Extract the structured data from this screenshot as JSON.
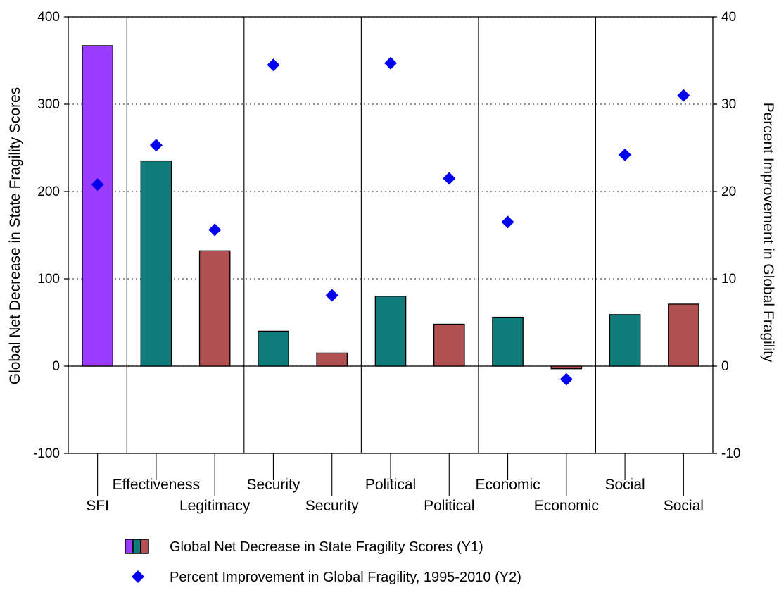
{
  "chart_data": {
    "type": "bar",
    "categories": [
      {
        "top": "",
        "bottom": "SFI"
      },
      {
        "top": "Effectiveness",
        "bottom": ""
      },
      {
        "top": "",
        "bottom": "Legitimacy"
      },
      {
        "top": "Security",
        "bottom": ""
      },
      {
        "top": "",
        "bottom": "Security"
      },
      {
        "top": "Political",
        "bottom": ""
      },
      {
        "top": "",
        "bottom": "Political"
      },
      {
        "top": "Economic",
        "bottom": ""
      },
      {
        "top": "",
        "bottom": "Economic"
      },
      {
        "top": "Social",
        "bottom": ""
      },
      {
        "top": "",
        "bottom": "Social"
      }
    ],
    "series": [
      {
        "name": "Global Net Decrease in State Fragility Scores (Y1)",
        "axis": "y1",
        "kind": "bar",
        "values": [
          367,
          235,
          132,
          40,
          15,
          80,
          48,
          56,
          -3,
          59,
          71
        ],
        "colors": [
          "#9b3bff",
          "#0f7b7b",
          "#b05050",
          "#0f7b7b",
          "#b05050",
          "#0f7b7b",
          "#b05050",
          "#0f7b7b",
          "#b05050",
          "#0f7b7b",
          "#b05050"
        ]
      },
      {
        "name": "Percent Improvement in Global Fragility, 1995-2010 (Y2)",
        "axis": "y2",
        "kind": "scatter",
        "marker": "diamond",
        "color": "#0000ee",
        "values": [
          20.8,
          25.3,
          15.6,
          34.5,
          8.1,
          34.7,
          21.5,
          16.5,
          -1.5,
          24.2,
          31.0
        ]
      }
    ],
    "ylabel": "Global Net Decrease in State Fragility Scores",
    "y2label": "Percent Improvement in Global Fragility",
    "ylim": [
      -100,
      400
    ],
    "yticks": [
      "-100",
      "0",
      "100",
      "200",
      "300",
      "400"
    ],
    "y2lim": [
      -10,
      40
    ],
    "y2ticks": [
      "-10",
      "0",
      "10",
      "20",
      "30",
      "40"
    ],
    "grid": "dotted horizontal",
    "legend_placement": "bottom"
  }
}
